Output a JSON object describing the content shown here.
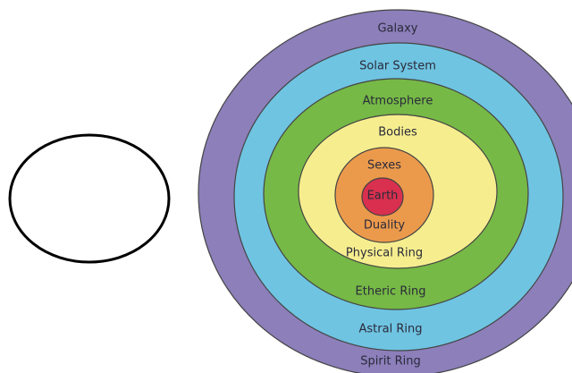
{
  "rings": {
    "outer": [
      "Galaxy",
      "Solar System",
      "Atmosphere",
      "Bodies",
      "Sexes"
    ],
    "center": "Earth",
    "inner": [
      "Duality",
      "Physical Ring",
      "Etheric Ring",
      "Astral Ring",
      "Spirit Ring"
    ]
  }
}
